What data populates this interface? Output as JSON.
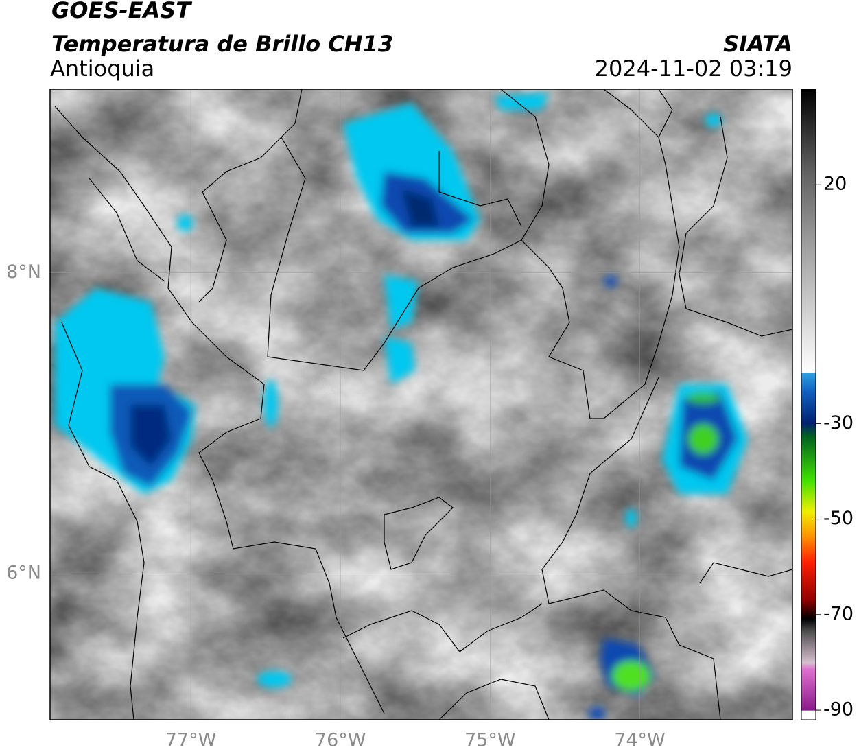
{
  "header": {
    "title": "GOES-EAST",
    "subtitle": "Temperatura de Brillo CH13",
    "region": "Antioquia",
    "source": "SIATA",
    "datetime": "2024-11-02 03:19"
  },
  "map": {
    "lon_range": [
      -77.94,
      -72.98
    ],
    "lat_range": [
      5.03,
      9.22
    ],
    "lon_ticks": [
      {
        "value": -77,
        "label": "77°W"
      },
      {
        "value": -76,
        "label": "76°W"
      },
      {
        "value": -75,
        "label": "75°W"
      },
      {
        "value": -74,
        "label": "74°W"
      }
    ],
    "lat_ticks": [
      {
        "value": 8,
        "label": "8°N"
      },
      {
        "value": 6,
        "label": "6°N"
      }
    ]
  },
  "colorbar": {
    "range": [
      -92,
      40
    ],
    "ticks": [
      20,
      -30,
      -50,
      -70,
      -90
    ]
  }
}
